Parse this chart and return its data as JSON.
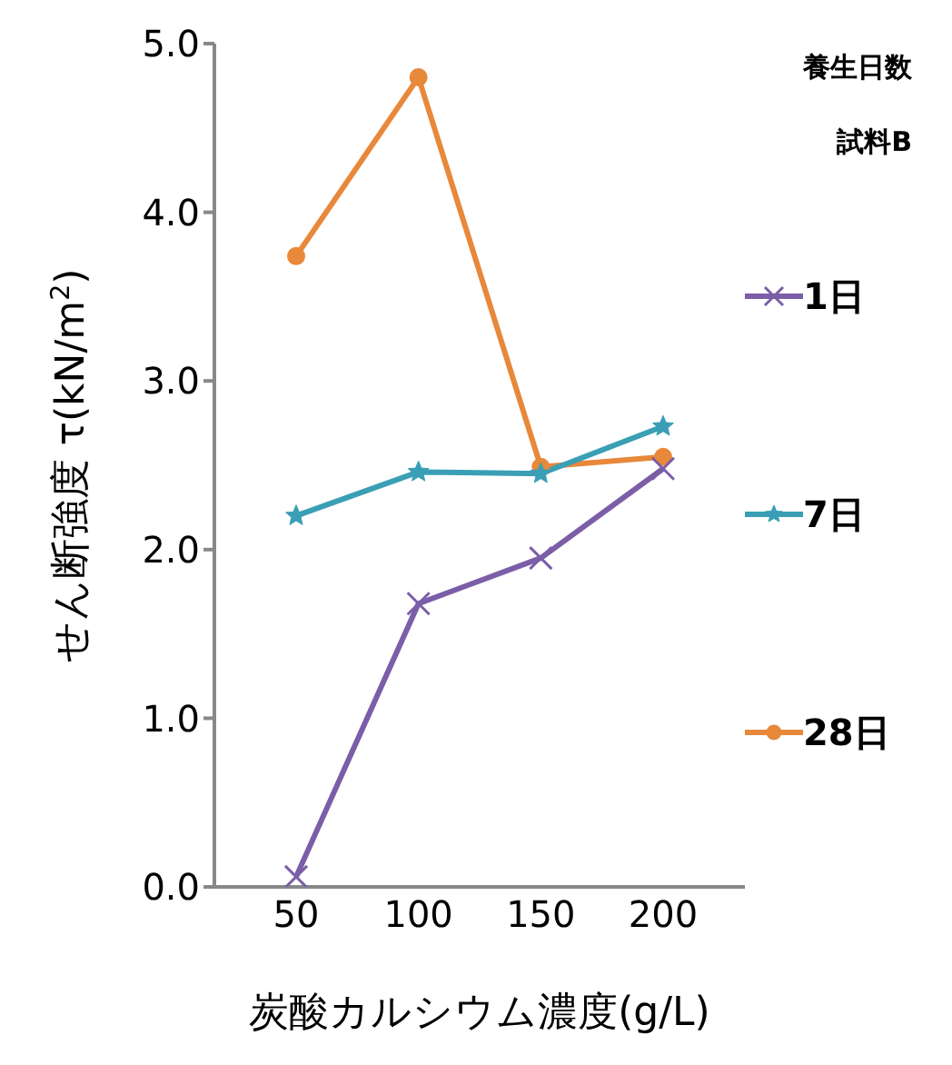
{
  "chart_data": {
    "type": "line",
    "legend_title": "養生日数",
    "annotations": [
      "試料B"
    ],
    "xlabel": "炭酸カルシウム濃度(g/L)",
    "ylabel": "せん断強度 τ(kN/m$^{2}$)",
    "categories": [
      "50",
      "100",
      "150",
      "200"
    ],
    "ylim": [
      0,
      5
    ],
    "yticks": [
      {
        "value": 0,
        "label": "0.0"
      },
      {
        "value": 1,
        "label": "1.0"
      },
      {
        "value": 2,
        "label": "2.0"
      },
      {
        "value": 3,
        "label": "3.0"
      },
      {
        "value": 4,
        "label": "4.0"
      },
      {
        "value": 5,
        "label": "5.0"
      }
    ],
    "grid": false,
    "legend": "right",
    "series": [
      {
        "name": "1日",
        "color": "#7b5ea7",
        "marker": "cross",
        "values": [
          0.06,
          1.68,
          1.95,
          2.48
        ]
      },
      {
        "name": "7日",
        "color": "#3a9fb5",
        "marker": "star",
        "values": [
          2.2,
          2.46,
          2.45,
          2.73
        ]
      },
      {
        "name": "28日",
        "color": "#e8883a",
        "marker": "circle",
        "values": [
          3.74,
          4.8,
          2.49,
          2.55
        ]
      }
    ]
  }
}
